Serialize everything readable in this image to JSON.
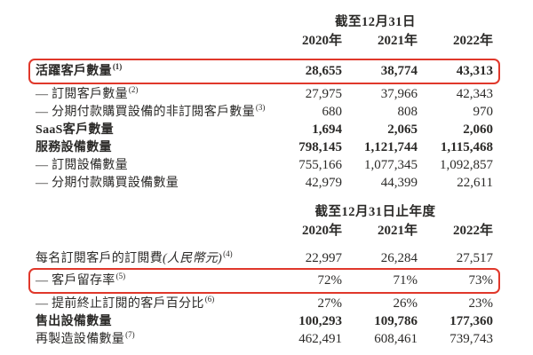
{
  "page": {
    "background": "#ffffff",
    "text_color": "#2b2a28",
    "highlight_color": "#e0382b"
  },
  "table1": {
    "period_header": "截至12月31日",
    "years": [
      "2020年",
      "2021年",
      "2022年"
    ],
    "rows": [
      {
        "label": "活躍客戶數量",
        "footnote": "(1)",
        "values": [
          "28,655",
          "38,774",
          "43,313"
        ],
        "bold": true,
        "boxed": true
      },
      {
        "label": "— 訂閱客戶數量",
        "footnote": "(2)",
        "values": [
          "27,975",
          "37,966",
          "42,343"
        ]
      },
      {
        "label": "— 分期付款購買設備的非訂閱客戶數量",
        "footnote": "(3)",
        "values": [
          "680",
          "808",
          "970"
        ]
      },
      {
        "label": "SaaS客戶數量",
        "values": [
          "1,694",
          "2,065",
          "2,060"
        ],
        "bold": true
      },
      {
        "label": "服務設備數量",
        "values": [
          "798,145",
          "1,121,744",
          "1,115,468"
        ],
        "bold": true
      },
      {
        "label": "— 訂閱設備數量",
        "values": [
          "755,166",
          "1,077,345",
          "1,092,857"
        ]
      },
      {
        "label": "— 分期付款購買設備數量",
        "values": [
          "42,979",
          "44,399",
          "22,611"
        ]
      }
    ]
  },
  "table2": {
    "period_header": "截至12月31日止年度",
    "years": [
      "2020年",
      "2021年",
      "2022年"
    ],
    "rows": [
      {
        "label": "每名訂閱客戶的訂閱費",
        "italic": "(人民幣元)",
        "footnote": "(4)",
        "values": [
          "22,997",
          "26,284",
          "27,517"
        ]
      },
      {
        "label": "— 客戶留存率",
        "footnote": "(5)",
        "values": [
          "72%",
          "71%",
          "73%"
        ],
        "boxed": true
      },
      {
        "label": "— 提前終止訂閱的客戶百分比",
        "footnote": "(6)",
        "values": [
          "27%",
          "26%",
          "23%"
        ]
      },
      {
        "label": "售出設備數量",
        "values": [
          "100,293",
          "109,786",
          "177,360"
        ],
        "bold": true
      },
      {
        "label": "再製造設備數量",
        "footnote": "(7)",
        "values": [
          "462,491",
          "608,461",
          "739,743"
        ]
      }
    ]
  }
}
